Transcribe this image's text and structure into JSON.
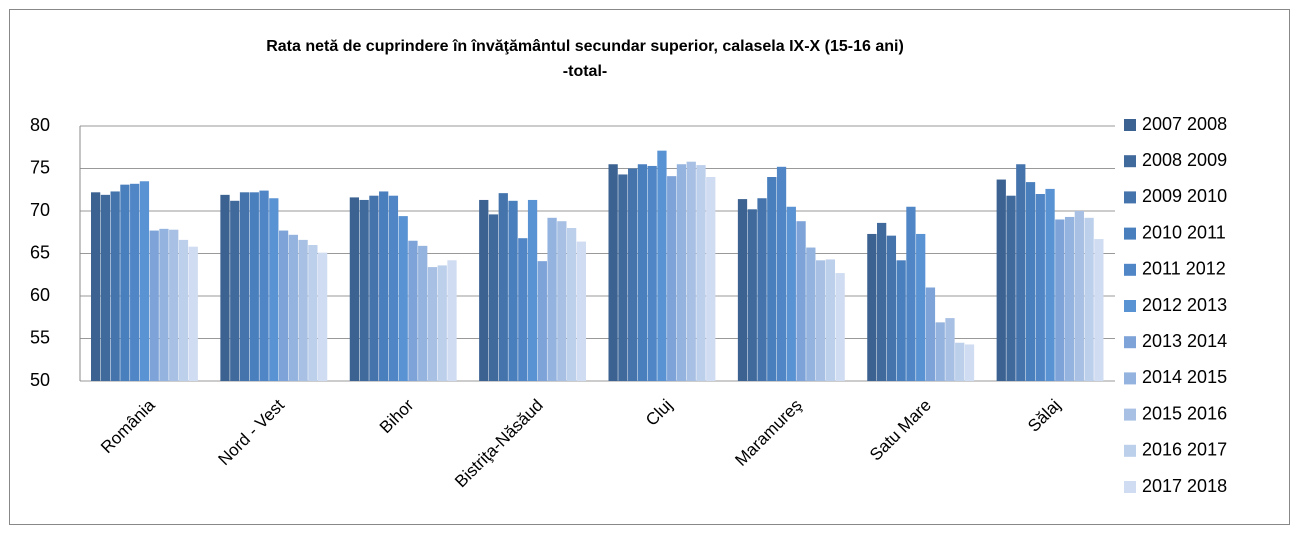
{
  "chart_data": {
    "type": "bar",
    "title": "Rata netă de cuprindere în învăţământul secundar superior, calasela IX-X (15-16 ani)",
    "subtitle": "-total-",
    "categories": [
      "România",
      "Nord - Vest",
      "Bihor",
      "Bistriţa-Năsăud",
      "Cluj",
      "Maramureş",
      "Satu Mare",
      "Sălaj"
    ],
    "series": [
      {
        "name": "2007 2008",
        "color": "#3b6291",
        "values": [
          72.2,
          71.9,
          71.6,
          71.3,
          75.5,
          71.4,
          67.3,
          73.7
        ]
      },
      {
        "name": "2008 2009",
        "color": "#40699c",
        "values": [
          71.9,
          71.2,
          71.3,
          69.6,
          74.3,
          70.2,
          68.6,
          71.8
        ]
      },
      {
        "name": "2009 2010",
        "color": "#4573ab",
        "values": [
          72.3,
          72.2,
          71.8,
          72.1,
          75.0,
          71.5,
          67.1,
          75.5
        ]
      },
      {
        "name": "2010 2011",
        "color": "#4a7fbd",
        "values": [
          73.1,
          72.2,
          72.3,
          71.2,
          75.5,
          74.0,
          64.2,
          73.4
        ]
      },
      {
        "name": "2011 2012",
        "color": "#5086c6",
        "values": [
          73.2,
          72.4,
          71.8,
          66.8,
          75.3,
          75.2,
          70.5,
          72.0
        ]
      },
      {
        "name": "2012 2013",
        "color": "#5a93d3",
        "values": [
          73.5,
          71.5,
          69.4,
          71.3,
          77.1,
          70.5,
          67.3,
          72.6
        ]
      },
      {
        "name": "2013 2014",
        "color": "#7ea3d8",
        "values": [
          67.7,
          67.7,
          66.5,
          64.1,
          74.1,
          68.8,
          61.0,
          69.0
        ]
      },
      {
        "name": "2014 2015",
        "color": "#94b3de",
        "values": [
          67.9,
          67.2,
          65.9,
          69.2,
          75.5,
          65.7,
          56.9,
          69.3
        ]
      },
      {
        "name": "2015 2016",
        "color": "#a8c0e3",
        "values": [
          67.8,
          66.6,
          63.4,
          68.8,
          75.8,
          64.2,
          57.4,
          70.0
        ]
      },
      {
        "name": "2016 2017",
        "color": "#bccfeb",
        "values": [
          66.6,
          66.0,
          63.6,
          68.0,
          75.4,
          64.3,
          54.5,
          69.2
        ]
      },
      {
        "name": "2017 2018",
        "color": "#d0dcf1",
        "values": [
          65.8,
          65.1,
          64.2,
          66.4,
          74.0,
          62.7,
          54.3,
          66.7
        ]
      }
    ],
    "ylim": [
      50,
      80
    ],
    "yticks": [
      50,
      55,
      60,
      65,
      70,
      75,
      80
    ],
    "grid": true,
    "legend": "right"
  }
}
